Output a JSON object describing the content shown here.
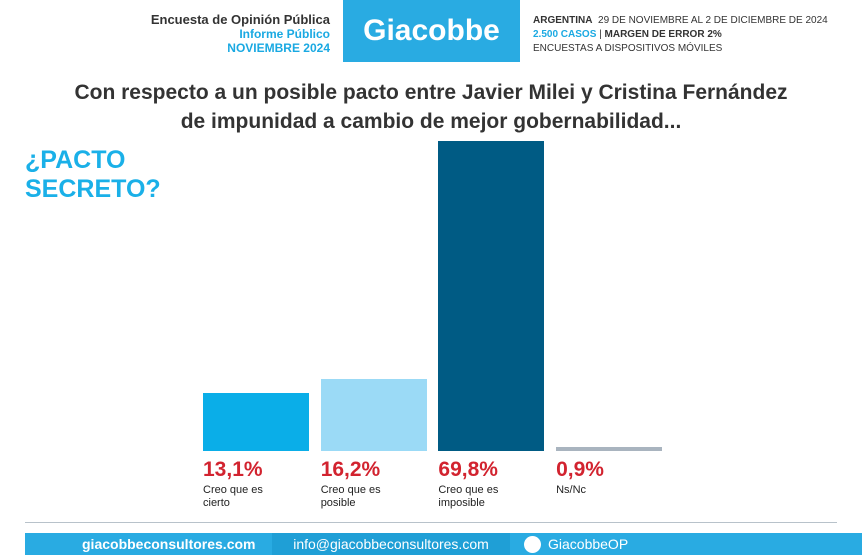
{
  "header": {
    "survey": "Encuesta de Opinión Pública",
    "report": "Informe Público",
    "month": "NOVIEMBRE 2024",
    "brand": "Giacobbe",
    "country": "ARGENTINA",
    "dates": "29 DE NOVIEMBRE AL 2 DE DICIEMBRE DE 2024",
    "cases": "2.500 CASOS",
    "error": "MARGEN DE ERROR 2%",
    "method": "ENCUESTAS A DISPOSITIVOS MÓVILES"
  },
  "chart_data": {
    "type": "bar",
    "title_lines": [
      "Con respecto a un posible pacto entre Javier Milei y Cristina Fernández",
      "de impunidad a cambio de mejor gobernabilidad..."
    ],
    "side_title_lines": [
      "¿PACTO",
      "SECRETO?"
    ],
    "categories": [
      "Creo que es cierto",
      "Creo que es posible",
      "Creo que es imposible",
      "Ns/Nc"
    ],
    "values": [
      13.1,
      16.2,
      69.8,
      0.9
    ],
    "value_labels": [
      "13,1%",
      "16,2%",
      "69,8%",
      "0,9%"
    ],
    "colors": [
      "#0aaee8",
      "#9bdaf6",
      "#005b84",
      "#a9b4bf"
    ]
  },
  "footer": {
    "web": "giacobbeconsultores.com",
    "email": "info@giacobbeconsultores.com",
    "twitter": "GiacobbeOP"
  }
}
